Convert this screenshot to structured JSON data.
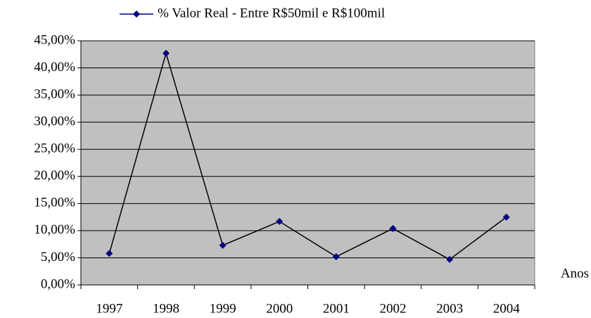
{
  "chart_data": {
    "type": "line",
    "x_label": "Anos",
    "categories": [
      "1997",
      "1998",
      "1999",
      "2000",
      "2001",
      "2002",
      "2003",
      "2004"
    ],
    "series": [
      {
        "name": "% Valor Real - Entre R$50mil e R$100mil",
        "color": "#000080",
        "line_color": "#000000",
        "values": [
          5.8,
          42.7,
          7.3,
          11.7,
          5.2,
          10.4,
          4.7,
          12.5
        ]
      }
    ],
    "ylim": [
      0,
      45
    ],
    "yticks": [
      {
        "value": 0,
        "label": "0,00%"
      },
      {
        "value": 5,
        "label": "5,00%"
      },
      {
        "value": 10,
        "label": "10,00%"
      },
      {
        "value": 15,
        "label": "15,00%"
      },
      {
        "value": 20,
        "label": "20,00%"
      },
      {
        "value": 25,
        "label": "25,00%"
      },
      {
        "value": 30,
        "label": "30,00%"
      },
      {
        "value": 35,
        "label": "35,00%"
      },
      {
        "value": 40,
        "label": "40,00%"
      },
      {
        "value": 45,
        "label": "45,00%"
      }
    ],
    "grid": true,
    "plot_background": "#c0c0c0",
    "legend": "top"
  }
}
